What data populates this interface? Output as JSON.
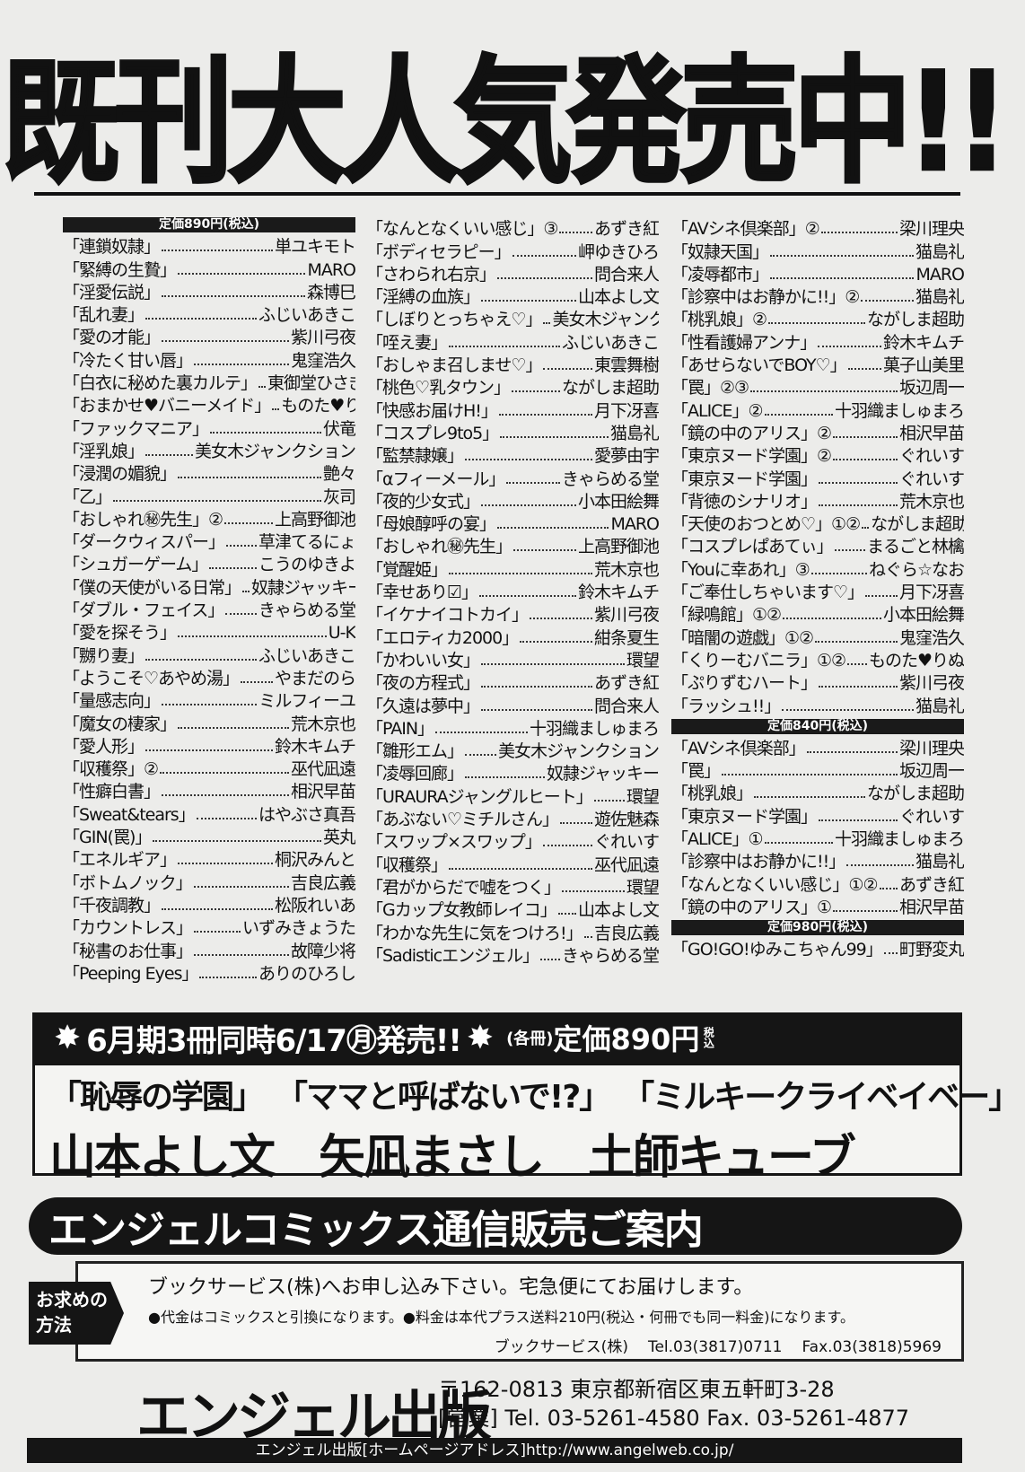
{
  "headline": "既刊大人気発売中!!",
  "columns": [
    {
      "sections": [
        {
          "header": "定価890円(税込)",
          "items": [
            [
              "「連鎖奴隷」",
              "単ユキモト"
            ],
            [
              "「緊縛の生贄」",
              "MARO"
            ],
            [
              "「淫愛伝説」",
              "森博巳"
            ],
            [
              "「乱れ妻」",
              "ふじいあきこ"
            ],
            [
              "「愛の才能」",
              "紫川弓夜"
            ],
            [
              "「冷たく甘い唇」",
              "鬼窪浩久"
            ],
            [
              "「白衣に秘めた裏カルテ」",
              "東御堂ひさぎ"
            ],
            [
              "「おまかせ♥バニーメイド」",
              "ものた♥りぬ"
            ],
            [
              "「ファックマニア」",
              "伏竜"
            ],
            [
              "「淫乳娘」",
              "美女木ジャンクション"
            ],
            [
              "「浸潤の媚貌」",
              "艶々"
            ],
            [
              "「乙」",
              "灰司"
            ],
            [
              "「おしゃれ㊙先生」②",
              "上高野御池"
            ],
            [
              "「ダークウィスパー」",
              "草津てるにょ"
            ],
            [
              "「シュガーゲーム」",
              "こうのゆきよ"
            ],
            [
              "「僕の天使がいる日常」",
              "奴隷ジャッキー"
            ],
            [
              "「ダブル・フェイス」",
              "きゃらめる堂"
            ],
            [
              "「愛を探そう」",
              "U-K"
            ],
            [
              "「嬲り妻」",
              "ふじいあきこ"
            ],
            [
              "「ようこそ♡あやめ湯」",
              "やまだのら"
            ],
            [
              "「量感志向」",
              "ミルフィーユ"
            ],
            [
              "「魔女の棲家」",
              "荒木京也"
            ],
            [
              "「愛人形」",
              "鈴木キムチ"
            ],
            [
              "「収穫祭」②",
              "巫代凪遠"
            ],
            [
              "「性癖白書」",
              "相沢早苗"
            ],
            [
              "「Sweat&tears」",
              "はやぶさ真吾"
            ],
            [
              "「GIN(罠)」",
              "英丸"
            ],
            [
              "「エネルギア」",
              "桐沢みんと"
            ],
            [
              "「ボトムノック」",
              "吉良広義"
            ],
            [
              "「千夜調教」",
              "松阪れいあ"
            ],
            [
              "「カウントレス」",
              "いずみきょうた"
            ],
            [
              "「秘書のお仕事」",
              "故障少将"
            ],
            [
              "「Peeping Eyes」",
              "ありのひろし"
            ]
          ]
        }
      ]
    },
    {
      "sections": [
        {
          "header": "",
          "items": [
            [
              "「なんとなくいい感じ」③",
              "あずき紅"
            ],
            [
              "「ボディセラピー」",
              "岬ゆきひろ"
            ],
            [
              "「さわられ右京」",
              "問合来人"
            ],
            [
              "「淫縛の血族」",
              "山本よし文"
            ],
            [
              "「しぼりとっちゃえ♡」",
              "美女木ジャンクション"
            ],
            [
              "「咥え妻」",
              "ふじいあきこ"
            ],
            [
              "「おしゃま召しませ♡」",
              "東雲舞樹"
            ],
            [
              "「桃色♡乳タウン」",
              "ながしま超助"
            ],
            [
              "「快感お届けH!」",
              "月下冴喜"
            ],
            [
              "「コスプレ9to5」",
              "猫島礼"
            ],
            [
              "「監禁隷嬢」",
              "愛夢由宇"
            ],
            [
              "「αフィーメール」",
              "きゃらめる堂"
            ],
            [
              "「夜的少女式」",
              "小本田絵舞"
            ],
            [
              "「母娘醇呼の宴」",
              "MARO"
            ],
            [
              "「おしゃれ㊙先生」",
              "上高野御池"
            ],
            [
              "「覚醒姫」",
              "荒木京也"
            ],
            [
              "「幸せあり☑」",
              "鈴木キムチ"
            ],
            [
              "「イケナイコトカイ」",
              "紫川弓夜"
            ],
            [
              "「エロティカ2000」",
              "紺条夏生"
            ],
            [
              "「かわいい女」",
              "環望"
            ],
            [
              "「夜の方程式」",
              "あずき紅"
            ],
            [
              "「久遠は夢中」",
              "問合来人"
            ],
            [
              "「PAIN」",
              "十羽織ましゅまろ"
            ],
            [
              "「雛形エム」",
              "美女木ジャンクション"
            ],
            [
              "「凌辱回廊」",
              "奴隷ジャッキー"
            ],
            [
              "「URAURAジャングルヒート」",
              "環望"
            ],
            [
              "「あぶない♡ミチルさん」",
              "遊佐魅森"
            ],
            [
              "「スワップ×スワップ」",
              "ぐれいす"
            ],
            [
              "「収穫祭」",
              "巫代凪遠"
            ],
            [
              "「君がからだで嘘をつく」",
              "環望"
            ],
            [
              "「Gカップ女教師レイコ」",
              "山本よし文"
            ],
            [
              "「わかな先生に気をつけろ!」",
              "吉良広義"
            ],
            [
              "「Sadisticエンジェル」",
              "きゃらめる堂"
            ]
          ]
        }
      ]
    },
    {
      "sections": [
        {
          "header": "",
          "items": [
            [
              "「AVシネ倶楽部」②",
              "梁川理央"
            ],
            [
              "「奴隷天国」",
              "猫島礼"
            ],
            [
              "「凌辱都市」",
              "MARO"
            ],
            [
              "「診察中はお静かに!!」②",
              "猫島礼"
            ],
            [
              "「桃乳娘」②",
              "ながしま超助"
            ],
            [
              "「性看護婦アンナ」",
              "鈴木キムチ"
            ],
            [
              "「あせらないでBOY♡」",
              "菓子山美里"
            ],
            [
              "「罠」②③",
              "坂辺周一"
            ],
            [
              "「ALICE」②",
              "十羽織ましゅまろ"
            ],
            [
              "「鏡の中のアリス」②",
              "相沢早苗"
            ],
            [
              "「東京ヌード学園」②",
              "ぐれいす"
            ],
            [
              "「東京ヌード学園」",
              "ぐれいす"
            ],
            [
              "「背徳のシナリオ」",
              "荒木京也"
            ],
            [
              "「天使のおつとめ♡」①②",
              "ながしま超助"
            ],
            [
              "「コスプレぱあてぃ」",
              "まるごと林檎"
            ],
            [
              "「Youに幸あれ」③",
              "ねぐら☆なお"
            ],
            [
              "「ご奉仕しちゃいます♡」",
              "月下冴喜"
            ],
            [
              "「緑鳴館」①②",
              "小本田絵舞"
            ],
            [
              "「暗闇の遊戯」①②",
              "鬼窪浩久"
            ],
            [
              "「くりーむバニラ」①②",
              "ものた♥りぬ"
            ],
            [
              "「ぷりずむハート」",
              "紫川弓夜"
            ],
            [
              "「ラッシュ!!」",
              "猫島礼"
            ]
          ]
        },
        {
          "header": "定価840円(税込)",
          "items": [
            [
              "「AVシネ倶楽部」",
              "梁川理央"
            ],
            [
              "「罠」",
              "坂辺周一"
            ],
            [
              "「桃乳娘」",
              "ながしま超助"
            ],
            [
              "「東京ヌード学園」",
              "ぐれいす"
            ],
            [
              "「ALICE」①",
              "十羽織ましゅまろ"
            ],
            [
              "「診察中はお静かに!!」",
              "猫島礼"
            ],
            [
              "「なんとなくいい感じ」①②",
              "あずき紅"
            ],
            [
              "「鏡の中のアリス」①",
              "相沢早苗"
            ]
          ]
        },
        {
          "header": "定価980円(税込)",
          "items": [
            [
              "「GO!GO!ゆみこちゃん99」",
              "町野変丸"
            ]
          ]
        }
      ]
    }
  ],
  "release": {
    "headline": "6月期3冊同時6/17㊊発売!!",
    "each": "(各冊)",
    "price": "定価890円",
    "tax": "税込",
    "titles": [
      "「恥辱の学園」",
      "「ママと呼ばないで!?」",
      "「ミルキークライベイベー」"
    ],
    "authors": [
      "山本よし文",
      "矢凪まさし",
      "土師キューブ"
    ]
  },
  "mail_order": {
    "banner": "エンジェルコミックス通信販売ご案内",
    "method_label": "お求めの方法",
    "line1": "ブックサービス(株)へお申し込み下さい。宅急便にてお届けします。",
    "line2": "●代金はコミックスと引換になります。●料金は本代プラス送料210円(税込・何冊でも同一料金)になります。",
    "company": "ブックサービス(株)",
    "tel": "Tel.03(3817)0711",
    "fax": "Fax.03(3818)5969"
  },
  "publisher": {
    "name": "エンジェル出版",
    "address": "〒162-0813 東京都新宿区東五軒町3-28",
    "contact": "[営業] Tel. 03-5261-4580 Fax. 03-5261-4877",
    "homepage": "エンジェル出版[ホームページアドレス]http://www.angelweb.co.jp/"
  }
}
